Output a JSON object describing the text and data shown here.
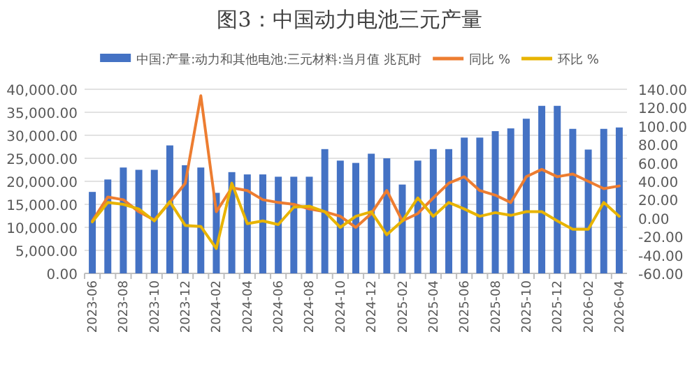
{
  "chart_data": {
    "type": "bar",
    "title": "图3：中国动力电池三元产量",
    "categories": [
      "2023-06",
      null,
      "2023-08",
      null,
      "2023-10",
      null,
      "2023-12",
      null,
      "2024-02",
      null,
      "2024-04",
      null,
      "2024-06",
      null,
      "2024-08",
      null,
      "2024-10",
      null,
      "2024-12",
      null,
      "2025-02",
      null,
      "2025-04",
      null,
      "2025-06",
      null,
      "2025-08",
      null,
      "2025-10",
      null,
      "2025-12",
      null,
      "2026-02",
      null,
      "2026-04"
    ],
    "series": [
      {
        "name": "中国:产量:动力和其他电池:三元材料:当月值 兆瓦时",
        "color": "#4472c4",
        "values": [
          17700,
          20400,
          23000,
          22500,
          22500,
          27800,
          23500,
          23000,
          17500,
          22000,
          21500,
          21500,
          21000,
          21000,
          21000,
          27000,
          24500,
          24000,
          26000,
          25000,
          19300,
          24500,
          27000,
          27000,
          29500,
          29500,
          30900,
          31500,
          33600,
          36400,
          36400,
          31400,
          26900,
          31400,
          31700
        ]
      },
      {
        "name": "同比 %",
        "type": "line",
        "axis": "y2",
        "color": "#ed7d31",
        "values": [
          -3,
          23,
          20,
          7,
          -2,
          17,
          38,
          133,
          7,
          33,
          30,
          20,
          17,
          15,
          10,
          7,
          2,
          -10,
          5,
          30,
          -3,
          5,
          22,
          38,
          45,
          30,
          25,
          17,
          45,
          53,
          45,
          48,
          40,
          32,
          35
        ]
      },
      {
        "name": "环比 %",
        "type": "line",
        "axis": "y2",
        "color": "#e8b400",
        "values": [
          -4,
          17,
          15,
          10,
          -3,
          18,
          -8,
          -9,
          -33,
          38,
          -6,
          -3,
          -7,
          12,
          13,
          7,
          -10,
          2,
          7,
          -18,
          -3,
          22,
          2,
          17,
          10,
          2,
          6,
          3,
          7,
          7,
          -3,
          -12,
          -12,
          17,
          2
        ]
      }
    ],
    "ylim": [
      0,
      40000
    ],
    "yticks": [
      {
        "value": 0,
        "label": "0.00"
      },
      {
        "value": 5000,
        "label": "5,000.00"
      },
      {
        "value": 10000,
        "label": "10,000.00"
      },
      {
        "value": 15000,
        "label": "15,000.00"
      },
      {
        "value": 20000,
        "label": "20,000.00"
      },
      {
        "value": 25000,
        "label": "25,000.00"
      },
      {
        "value": 30000,
        "label": "30,000.00"
      },
      {
        "value": 35000,
        "label": "35,000.00"
      },
      {
        "value": 40000,
        "label": "40,000.00"
      }
    ],
    "y2lim": [
      -60,
      140
    ],
    "y2ticks": [
      {
        "value": -60,
        "label": "-60.00"
      },
      {
        "value": -40,
        "label": "-40.00"
      },
      {
        "value": -20,
        "label": "-20.00"
      },
      {
        "value": 0,
        "label": "0.00"
      },
      {
        "value": 20,
        "label": "20.00"
      },
      {
        "value": 40,
        "label": "40.00"
      },
      {
        "value": 60,
        "label": "60.00"
      },
      {
        "value": 80,
        "label": "80.00"
      },
      {
        "value": 100,
        "label": "100.00"
      },
      {
        "value": 120,
        "label": "120.00"
      },
      {
        "value": 140,
        "label": "140.00"
      }
    ],
    "grid": "y",
    "legend": "top",
    "marker": "none",
    "line_style": "solid"
  }
}
